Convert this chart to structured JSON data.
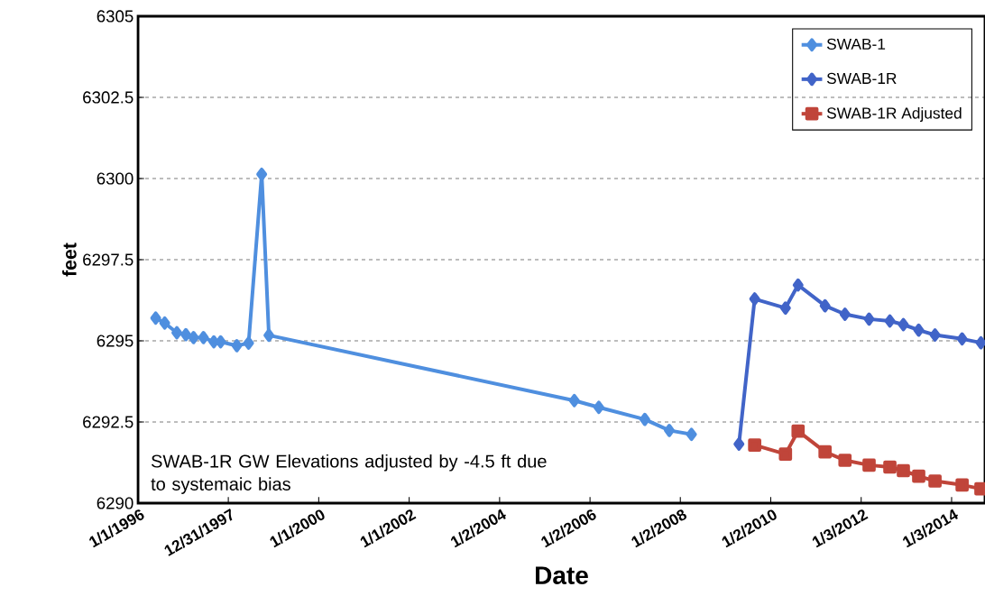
{
  "chart_data": {
    "type": "line",
    "xlabel": "Date",
    "ylabel": "feet",
    "annotations": [
      "SWAB-1R GW Elevations adjusted by -4.5 ft due to systemaic bias"
    ],
    "xlim": [
      "1996-01-01",
      "2014-09-30"
    ],
    "ylim": [
      6290,
      6305
    ],
    "xticks": [
      {
        "value": "1996-01-01",
        "label": "1/1/1996"
      },
      {
        "value": "1997-12-31",
        "label": "12/31/1997"
      },
      {
        "value": "2000-01-01",
        "label": "1/1/2000"
      },
      {
        "value": "2002-01-01",
        "label": "1/1/2002"
      },
      {
        "value": "2004-01-02",
        "label": "1/2/2004"
      },
      {
        "value": "2006-01-02",
        "label": "1/2/2006"
      },
      {
        "value": "2008-01-02",
        "label": "1/2/2008"
      },
      {
        "value": "2010-01-02",
        "label": "1/2/2010"
      },
      {
        "value": "2012-01-03",
        "label": "1/3/2012"
      },
      {
        "value": "2014-01-03",
        "label": "1/3/2014"
      }
    ],
    "yticks": [
      6290,
      6292.5,
      6295,
      6297.5,
      6300,
      6302.5,
      6305
    ],
    "grid": "y",
    "legend": "top right",
    "series": [
      {
        "name": "SWAB-1",
        "color": "#4f8fdf",
        "marker": "diamond",
        "x": [
          "1996-05-23",
          "1996-08-04",
          "1996-11-10",
          "1997-01-22",
          "1997-03-25",
          "1997-06-13",
          "1997-09-05",
          "1997-10-30",
          "1998-03-10",
          "1998-06-13",
          "1998-09-27",
          "1998-11-24",
          "2005-08-28",
          "2006-03-14",
          "2007-03-21",
          "2007-10-05",
          "2008-04-01"
        ],
        "values": [
          6295.7,
          6295.55,
          6295.25,
          6295.19,
          6295.1,
          6295.1,
          6294.97,
          6294.97,
          6294.85,
          6294.93,
          6300.13,
          6295.17,
          6293.16,
          6292.95,
          6292.58,
          6292.24,
          6292.12
        ]
      },
      {
        "name": "SWAB-1R",
        "color": "#4164c8",
        "marker": "diamond",
        "x": [
          "2009-04-20",
          "2009-08-25",
          "2010-05-01",
          "2010-08-11",
          "2011-03-17",
          "2011-08-25",
          "2012-03-07",
          "2012-08-22",
          "2012-12-09",
          "2013-04-12",
          "2013-08-22",
          "2014-03-29",
          "2014-08-28"
        ],
        "values": [
          6291.82,
          6296.29,
          6296.01,
          6296.72,
          6296.08,
          6295.82,
          6295.67,
          6295.61,
          6295.5,
          6295.33,
          6295.18,
          6295.06,
          6294.94
        ]
      },
      {
        "name": "SWAB-1R Adjusted",
        "color": "#c0453a",
        "marker": "square",
        "x": [
          "2009-08-25",
          "2010-05-01",
          "2010-08-11",
          "2011-03-17",
          "2011-08-25",
          "2012-03-07",
          "2012-08-22",
          "2012-12-09",
          "2013-04-12",
          "2013-08-22",
          "2014-03-29",
          "2014-08-28"
        ],
        "values": [
          6291.79,
          6291.51,
          6292.22,
          6291.58,
          6291.32,
          6291.17,
          6291.11,
          6291.0,
          6290.83,
          6290.68,
          6290.56,
          6290.44
        ]
      }
    ]
  }
}
